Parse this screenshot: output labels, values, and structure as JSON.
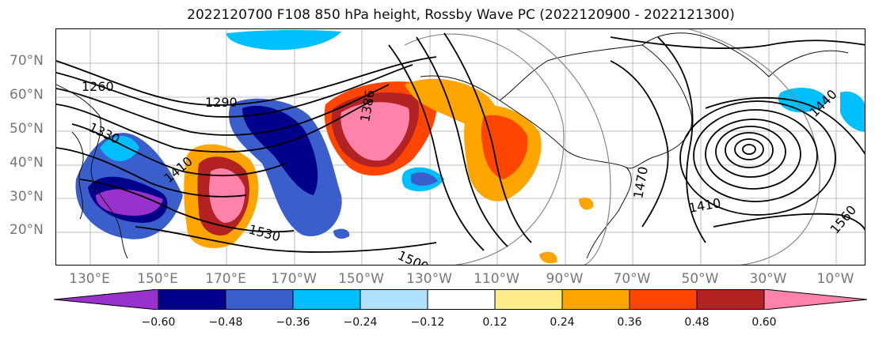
{
  "title": "2022120700 F108 850 hPa height, Rossby Wave PC (2022120900 - 2022121300)",
  "lat_labels": [
    "70°N",
    "60°N",
    "50°N",
    "40°N",
    "30°N",
    "20°N"
  ],
  "lon_labels": [
    "130°E",
    "150°E",
    "170°E",
    "170°W",
    "150°W",
    "130°W",
    "110°W",
    "90°W",
    "70°W",
    "50°W",
    "30°W",
    "10°W"
  ],
  "contour_labels": [
    "1260",
    "1290",
    "1330",
    "1410",
    "1530",
    "1500",
    "1386",
    "1470",
    "1440",
    "1560",
    "1410"
  ],
  "colorbar": {
    "ticks": [
      "−0.60",
      "−0.48",
      "−0.36",
      "−0.24",
      "−0.12",
      "0.12",
      "0.24",
      "0.36",
      "0.48",
      "0.60"
    ],
    "colors": [
      "#9932cc",
      "#00008b",
      "#3a5fcd",
      "#00bfff",
      "#b0e2ff",
      "#ffffff",
      "#ffec8b",
      "#ffa500",
      "#ff4500",
      "#b22222",
      "#ff82ab"
    ]
  }
}
